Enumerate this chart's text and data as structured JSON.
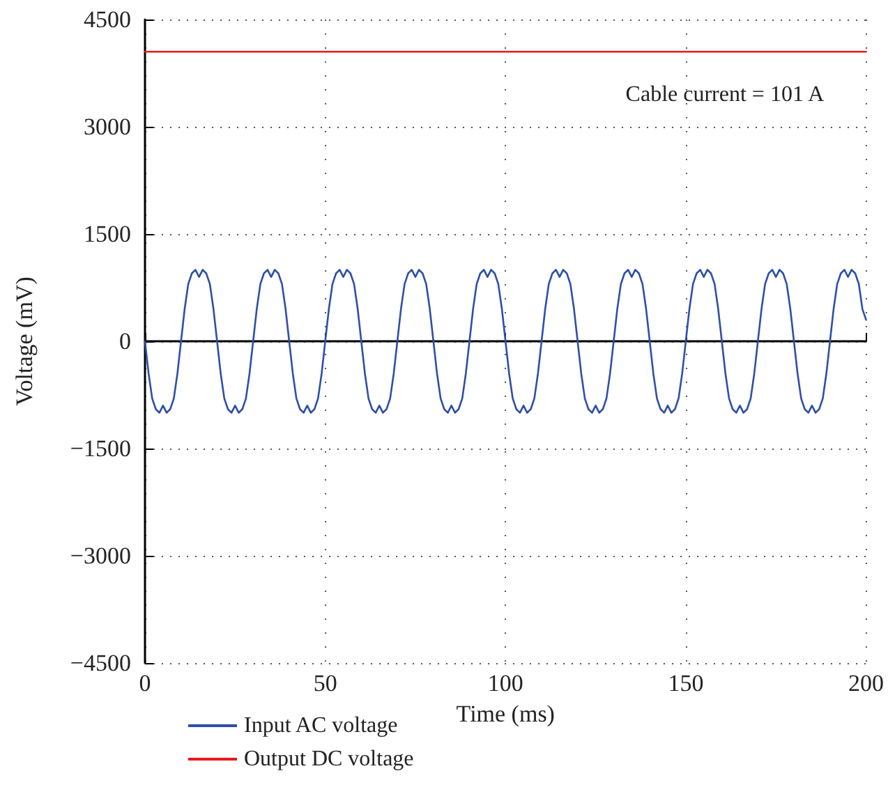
{
  "chart_data": {
    "type": "line",
    "xlabel": "Time (ms)",
    "ylabel": "Voltage (mV)",
    "annotations": [
      "Cable current = 101 A"
    ],
    "xlim": [
      0,
      200
    ],
    "xticks": [
      0,
      50,
      100,
      150,
      200
    ],
    "ylim": [
      -4500,
      4500
    ],
    "yticks": [
      -4500,
      -3000,
      -1500,
      0,
      1500,
      3000,
      4500
    ],
    "grid": true,
    "legend": "bottom left",
    "marker": "none",
    "line_style": "solid",
    "series": [
      {
        "name": "Input AC voltage",
        "color": "#2e4fa8",
        "x": [
          0,
          1,
          2,
          3,
          4,
          5,
          6,
          7,
          8,
          9,
          10,
          11,
          12,
          13,
          14,
          15,
          16,
          17,
          18,
          19,
          20,
          21,
          22,
          23,
          24,
          25,
          26,
          27,
          28,
          29,
          30,
          31,
          32,
          33,
          34,
          35,
          36,
          37,
          38,
          39,
          40,
          41,
          42,
          43,
          44,
          45,
          46,
          47,
          48,
          49,
          50,
          51,
          52,
          53,
          54,
          55,
          56,
          57,
          58,
          59,
          60,
          61,
          62,
          63,
          64,
          65,
          66,
          67,
          68,
          69,
          70,
          71,
          72,
          73,
          74,
          75,
          76,
          77,
          78,
          79,
          80,
          81,
          82,
          83,
          84,
          85,
          86,
          87,
          88,
          89,
          90,
          91,
          92,
          93,
          94,
          95,
          96,
          97,
          98,
          99,
          100,
          101,
          102,
          103,
          104,
          105,
          106,
          107,
          108,
          109,
          110,
          111,
          112,
          113,
          114,
          115,
          116,
          117,
          118,
          119,
          120,
          121,
          122,
          123,
          124,
          125,
          126,
          127,
          128,
          129,
          130,
          131,
          132,
          133,
          134,
          135,
          136,
          137,
          138,
          139,
          140,
          141,
          142,
          143,
          144,
          145,
          146,
          147,
          148,
          149,
          150,
          151,
          152,
          153,
          154,
          155,
          156,
          157,
          158,
          159,
          160,
          161,
          162,
          163,
          164,
          165,
          166,
          167,
          168,
          169,
          170,
          171,
          172,
          173,
          174,
          175,
          176,
          177,
          178,
          179,
          180,
          181,
          182,
          183,
          184,
          185,
          186,
          187,
          188,
          189,
          190,
          191,
          192,
          193,
          194,
          195,
          196,
          197,
          198,
          199,
          200
        ],
        "values": [
          0,
          -450,
          -800,
          -950,
          -1000,
          -900,
          -1000,
          -950,
          -800,
          -450,
          0,
          450,
          800,
          950,
          1000,
          900,
          1000,
          950,
          800,
          450,
          0,
          -450,
          -800,
          -950,
          -1000,
          -900,
          -1000,
          -950,
          -800,
          -450,
          0,
          450,
          800,
          950,
          1000,
          900,
          1000,
          950,
          800,
          450,
          0,
          -450,
          -800,
          -950,
          -1000,
          -900,
          -1000,
          -950,
          -800,
          -450,
          0,
          450,
          800,
          950,
          1000,
          900,
          1000,
          950,
          800,
          450,
          0,
          -450,
          -800,
          -950,
          -1000,
          -900,
          -1000,
          -950,
          -800,
          -450,
          0,
          450,
          800,
          950,
          1000,
          900,
          1000,
          950,
          800,
          450,
          0,
          -450,
          -800,
          -950,
          -1000,
          -900,
          -1000,
          -950,
          -800,
          -450,
          0,
          450,
          800,
          950,
          1000,
          900,
          1000,
          950,
          800,
          450,
          0,
          -450,
          -800,
          -950,
          -1000,
          -900,
          -1000,
          -950,
          -800,
          -450,
          0,
          450,
          800,
          950,
          1000,
          900,
          1000,
          950,
          800,
          450,
          0,
          -450,
          -800,
          -950,
          -1000,
          -900,
          -1000,
          -950,
          -800,
          -450,
          0,
          450,
          800,
          950,
          1000,
          900,
          1000,
          950,
          800,
          450,
          0,
          -450,
          -800,
          -950,
          -1000,
          -900,
          -1000,
          -950,
          -800,
          -450,
          0,
          450,
          800,
          950,
          1000,
          900,
          1000,
          950,
          800,
          450,
          0,
          -450,
          -800,
          -950,
          -1000,
          -900,
          -1000,
          -950,
          -800,
          -450,
          0,
          450,
          800,
          950,
          1000,
          900,
          1000,
          950,
          800,
          450,
          0,
          -450,
          -800,
          -950,
          -1000,
          -900,
          -1000,
          -950,
          -800,
          -450,
          0,
          450,
          800,
          950,
          1000,
          900,
          1000,
          950,
          800,
          450,
          300
        ]
      },
      {
        "name": "Output DC voltage",
        "color": "#e8191c",
        "x": [
          0,
          200
        ],
        "values": [
          4050,
          4050
        ]
      }
    ]
  }
}
